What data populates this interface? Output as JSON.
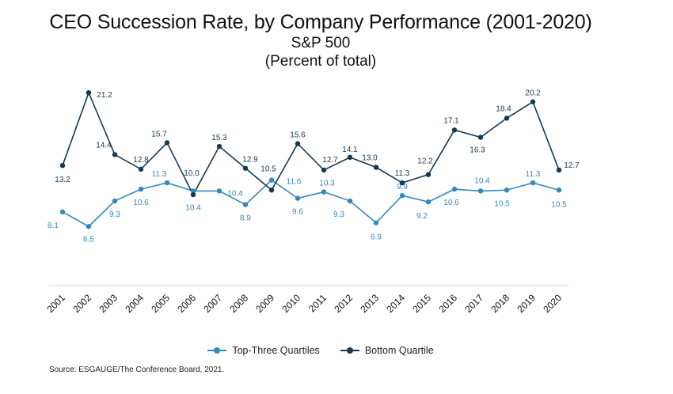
{
  "header": {
    "title": "CEO Succession Rate, by Company Performance (2001-2020)",
    "subtitle": "S&P 500",
    "unit": "(Percent of total)"
  },
  "source": "Source: ESGAUGE/The Conference Board, 2021.",
  "colors": {
    "top": "#3589b8",
    "bottom": "#16394f",
    "axis": "#d4d4d4"
  },
  "chart_data": {
    "type": "line",
    "title": "CEO Succession Rate, by Company Performance (2001-2020)",
    "subtitle": "S&P 500",
    "ylabel": "(Percent of total)",
    "x": [
      "2001",
      "2002",
      "2003",
      "2004",
      "2005",
      "2006",
      "2007",
      "2008",
      "2009",
      "2010",
      "2011",
      "2012",
      "2013",
      "2014",
      "2015",
      "2016",
      "2017",
      "2018",
      "2019",
      "2020"
    ],
    "ylim": [
      0,
      23
    ],
    "grid": false,
    "legend": "bottom",
    "series": [
      {
        "name": "Top-Three Quartiles",
        "color": "#3589b8",
        "values": [
          8.1,
          6.5,
          9.3,
          10.6,
          11.3,
          10.4,
          10.4,
          8.9,
          11.6,
          9.6,
          10.3,
          9.3,
          6.9,
          9.9,
          9.2,
          10.6,
          10.4,
          10.5,
          11.3,
          10.5
        ]
      },
      {
        "name": "Bottom Quartile",
        "color": "#16394f",
        "values": [
          13.2,
          21.2,
          14.4,
          12.8,
          15.7,
          10.0,
          15.3,
          12.9,
          10.5,
          15.6,
          12.7,
          14.1,
          13.0,
          11.3,
          12.2,
          17.1,
          16.3,
          18.4,
          20.2,
          12.7
        ]
      }
    ]
  }
}
